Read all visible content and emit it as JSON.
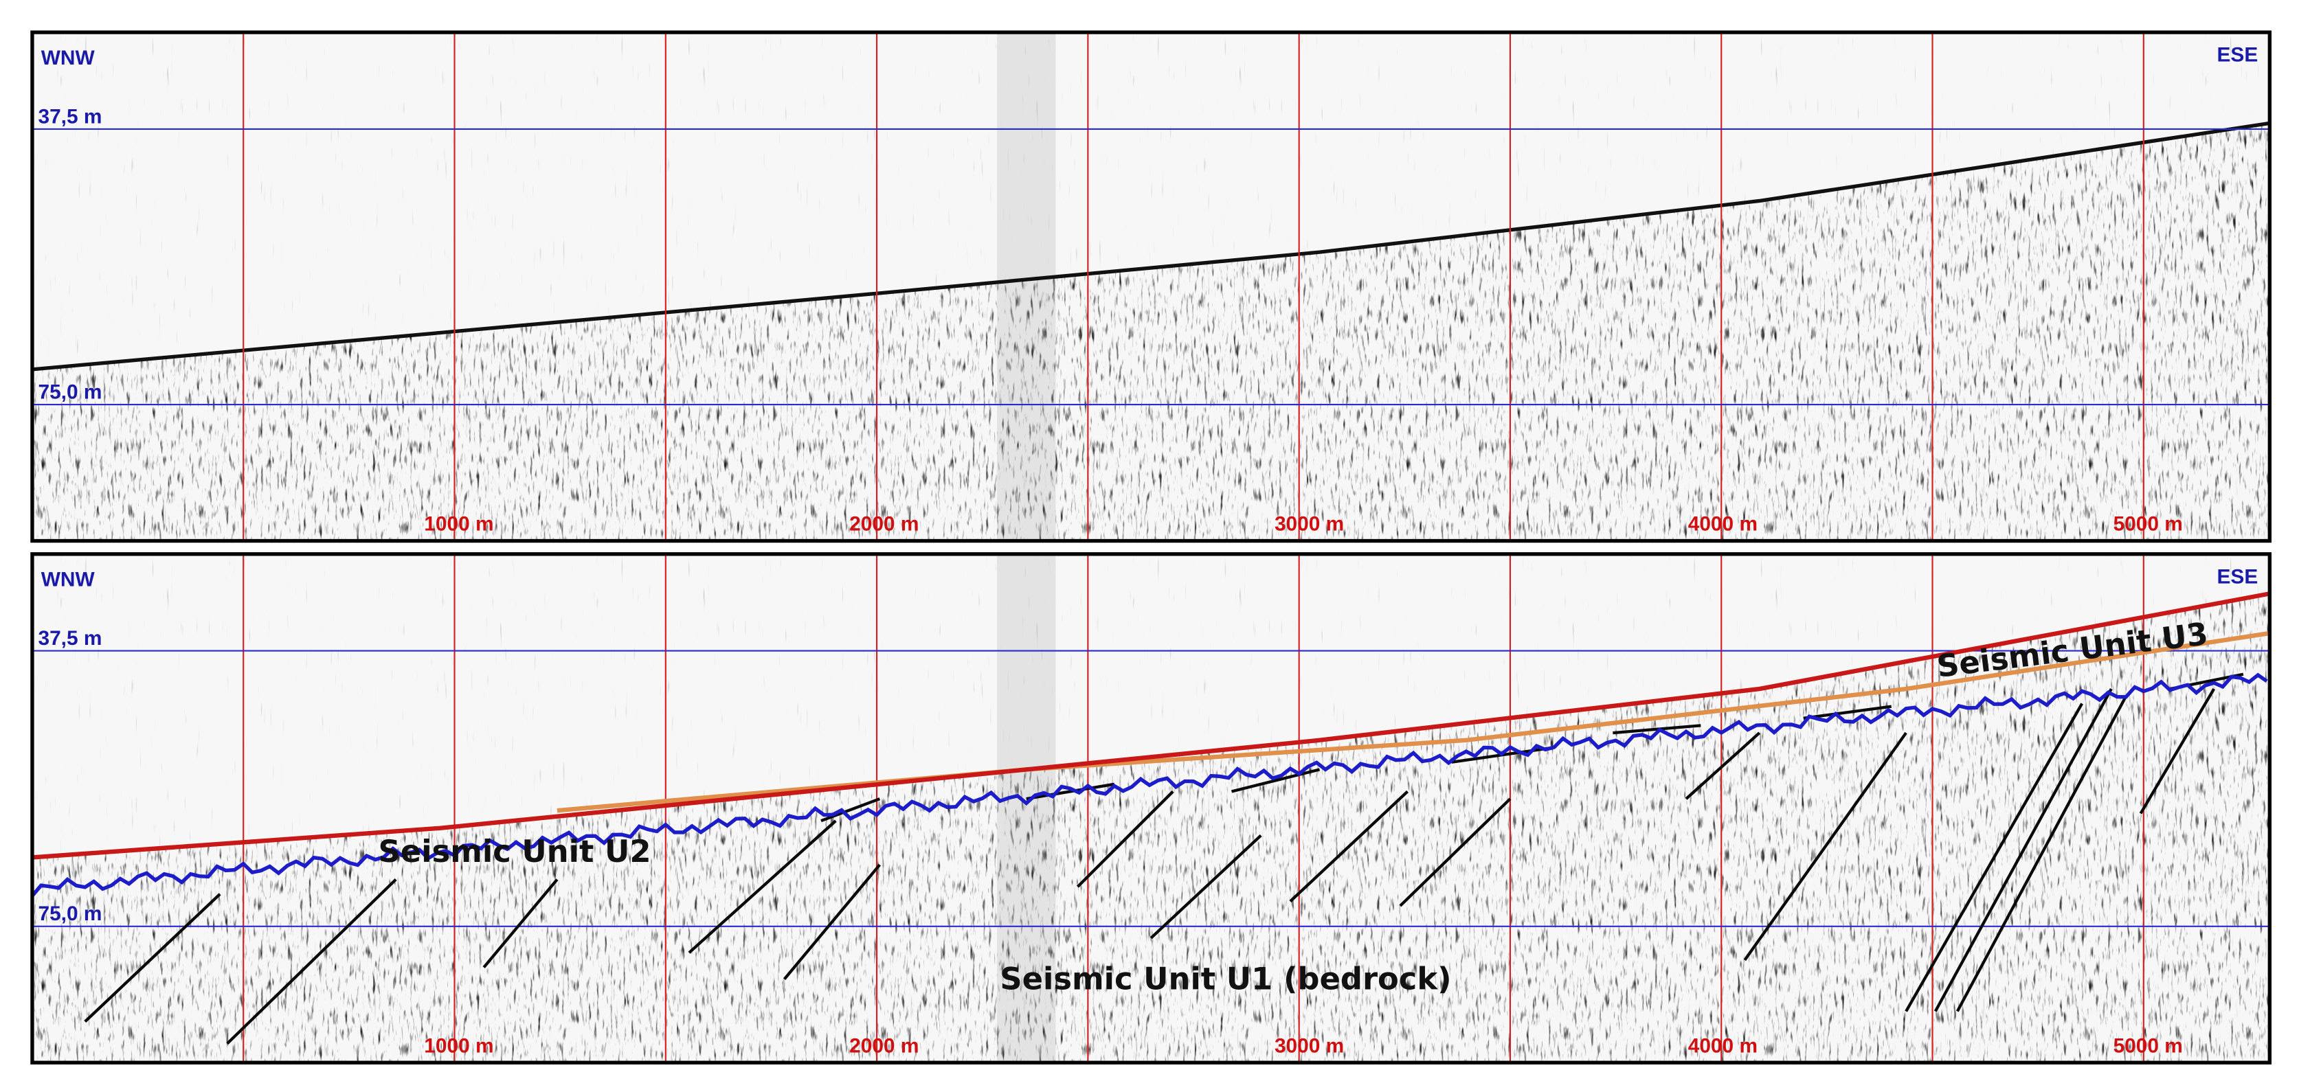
{
  "panels": [
    {
      "direction_left": "WNW",
      "direction_right": "ESE",
      "depth_labels": [
        "37,5 m",
        "75,0 m"
      ],
      "distance_labels": [
        "1000 m",
        "2000 m",
        "3000 m",
        "4000 m",
        "5000 m"
      ]
    },
    {
      "direction_left": "WNW",
      "direction_right": "ESE",
      "depth_labels": [
        "37,5 m",
        "75,0 m"
      ],
      "distance_labels": [
        "1000 m",
        "2000 m",
        "3000 m",
        "4000 m",
        "5000 m"
      ],
      "unit_labels": [
        "Seismic Unit U2",
        "Seismic Unit U3",
        "Seismic Unit U1 (bedrock)"
      ]
    }
  ]
}
